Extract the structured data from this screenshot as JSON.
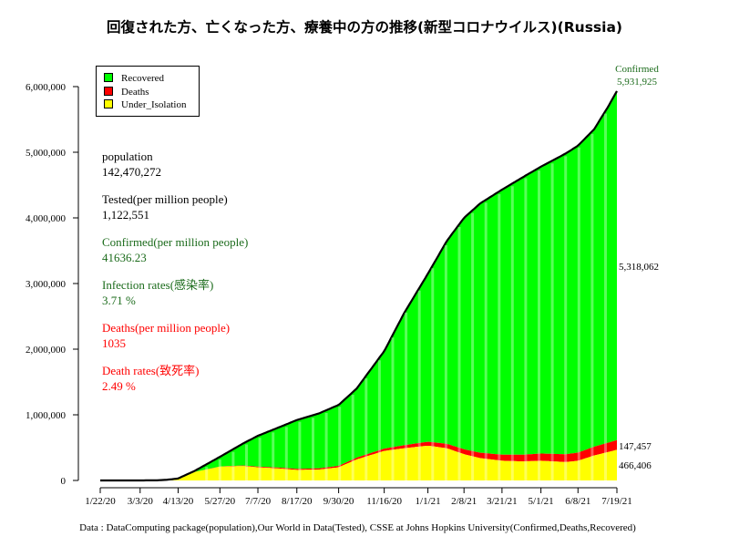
{
  "title": "回復された方、亡くなった方、療養中の方の推移(新型コロナウイルス)(Russia)",
  "footer": "Data : DataComputing package(population),Our World in Data(Tested), CSSE at Johns Hopkins University(Confirmed,Deaths,Recovered)",
  "stats": {
    "population_label": "population",
    "population_value": "142,470,272",
    "tested_label": "Tested(per million people)",
    "tested_value": "1,122,551",
    "confirmed_label": "Confirmed(per million people)",
    "confirmed_value": "41636.23",
    "infection_label": "Infection rates(感染率)",
    "infection_value": "3.71 %",
    "deaths_label": "Deaths(per million people)",
    "deaths_value": "1035",
    "death_rate_label": "Death rates(致死率)",
    "death_rate_value": "2.49 %"
  },
  "colors": {
    "recovered": "#00ff00",
    "deaths": "#ff0000",
    "under_isolation": "#ffff00",
    "confirmed_line": "#000000",
    "green_text": "#1b6b1b",
    "red_text": "#ff0000"
  },
  "chart_data": {
    "type": "area",
    "title": "回復された方、亡くなった方、療養中の方の推移(新型コロナウイルス)(Russia)",
    "xlabel": "",
    "ylabel": "",
    "ylim": [
      0,
      6000000
    ],
    "yticks": [
      0,
      1000000,
      2000000,
      3000000,
      4000000,
      5000000,
      6000000
    ],
    "ytick_labels": [
      "0",
      "1,000,000",
      "2,000,000",
      "3,000,000",
      "4,000,000",
      "5,000,000",
      "6,000,000"
    ],
    "x_range_days": [
      0,
      544
    ],
    "xtick_days": [
      0,
      42,
      82,
      126,
      166,
      207,
      251,
      299,
      345,
      383,
      423,
      464,
      503,
      544
    ],
    "xtick_labels": [
      "1/22/20",
      "3/3/20",
      "4/13/20",
      "5/27/20",
      "7/7/20",
      "8/17/20",
      "9/30/20",
      "11/16/20",
      "1/1/21",
      "2/8/21",
      "3/21/21",
      "5/1/21",
      "6/8/21",
      "7/19/21"
    ],
    "legend_position": "top-left",
    "legend": [
      "Recovered",
      "Deaths",
      "Under_Isolation"
    ],
    "series": [
      {
        "name": "Confirmed",
        "x": [
          0,
          40,
          60,
          70,
          82,
          100,
          126,
          150,
          166,
          190,
          207,
          230,
          251,
          270,
          299,
          320,
          345,
          365,
          383,
          400,
          423,
          445,
          464,
          490,
          503,
          520,
          535,
          544
        ],
        "values": [
          0,
          0,
          2000,
          10000,
          30000,
          150000,
          360000,
          560000,
          680000,
          820000,
          920000,
          1020000,
          1150000,
          1400000,
          1970000,
          2550000,
          3150000,
          3650000,
          4000000,
          4220000,
          4430000,
          4620000,
          4780000,
          4980000,
          5100000,
          5350000,
          5700000,
          5931925
        ]
      },
      {
        "name": "Deaths",
        "x": [
          0,
          82,
          126,
          166,
          207,
          251,
          299,
          345,
          383,
          423,
          464,
          503,
          544
        ],
        "values": [
          0,
          500,
          3000,
          11000,
          16000,
          22000,
          35000,
          60000,
          75000,
          93000,
          110000,
          124000,
          147457
        ]
      },
      {
        "name": "Under_Isolation",
        "x": [
          0,
          60,
          82,
          100,
          126,
          150,
          166,
          190,
          207,
          230,
          251,
          270,
          299,
          320,
          345,
          365,
          383,
          400,
          423,
          445,
          464,
          490,
          503,
          520,
          544
        ],
        "values": [
          0,
          1000,
          20000,
          130000,
          210000,
          220000,
          200000,
          180000,
          160000,
          165000,
          200000,
          320000,
          450000,
          490000,
          530000,
          490000,
          400000,
          340000,
          300000,
          290000,
          300000,
          280000,
          300000,
          380000,
          466406
        ]
      }
    ],
    "annotations": {
      "confirmed_label": "Confirmed",
      "confirmed_value": "5,931,925",
      "recovered_value": "5,318,062",
      "deaths_value": "147,457",
      "isolation_value": "466,406"
    }
  }
}
